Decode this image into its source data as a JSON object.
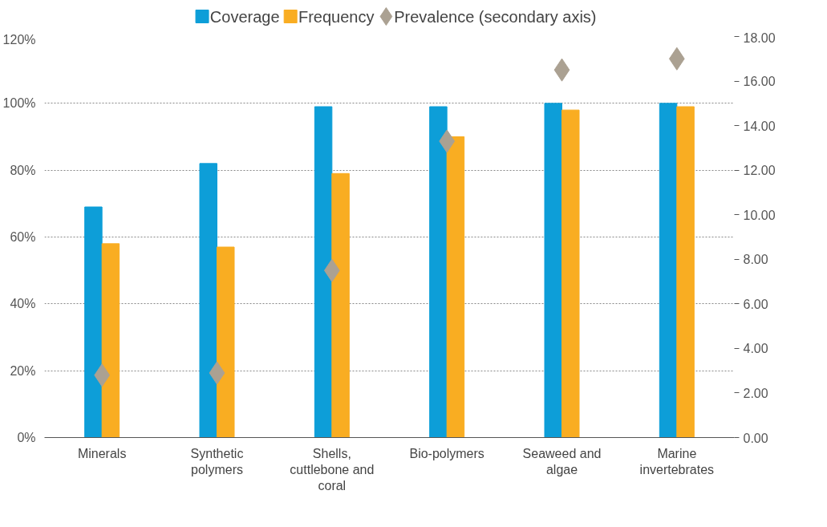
{
  "chart_data": {
    "type": "bar",
    "categories": [
      "Minerals",
      "Synthetic polymers",
      "Shells, cuttlebone and coral",
      "Bio-polymers",
      "Seaweed and algae",
      "Marine invertebrates"
    ],
    "series": [
      {
        "name": "Coverage",
        "color": "#0d9ed8",
        "values": [
          69,
          82,
          99,
          99,
          100,
          100
        ]
      },
      {
        "name": "Frequency",
        "color": "#f9ad22",
        "values": [
          58,
          57,
          79,
          90,
          98,
          99
        ]
      },
      {
        "name": "Prevalence (secondary axis)",
        "type": "scatter",
        "axis": "y2",
        "marker": "diamond",
        "color": "#aba192",
        "values": [
          2.8,
          2.9,
          7.5,
          13.3,
          16.5,
          17.0
        ]
      }
    ],
    "ylim": [
      0,
      120
    ],
    "yticks": [
      {
        "value": 0,
        "label": "0%"
      },
      {
        "value": 20,
        "label": "20%"
      },
      {
        "value": 40,
        "label": "40%"
      },
      {
        "value": 60,
        "label": "60%"
      },
      {
        "value": 80,
        "label": "80%"
      },
      {
        "value": 100,
        "label": "100%"
      },
      {
        "value": 120,
        "label": "120%"
      }
    ],
    "y2lim": [
      0,
      18
    ],
    "y2ticks": [
      {
        "value": 0,
        "label": "0.00"
      },
      {
        "value": 2,
        "label": "2.00"
      },
      {
        "value": 4,
        "label": "4.00"
      },
      {
        "value": 6,
        "label": "6.00"
      },
      {
        "value": 8,
        "label": "8.00"
      },
      {
        "value": 10,
        "label": "10.00"
      },
      {
        "value": 12,
        "label": "12.00"
      },
      {
        "value": 14,
        "label": "14.00"
      },
      {
        "value": 16,
        "label": "16.00"
      },
      {
        "value": 18,
        "label": "18.00"
      }
    ],
    "grid": "y",
    "legend": "top"
  }
}
